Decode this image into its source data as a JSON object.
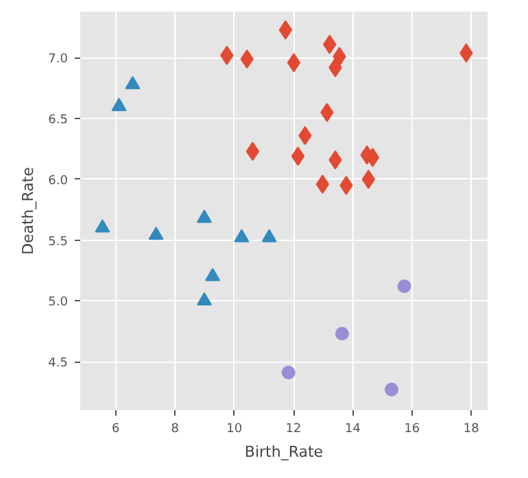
{
  "chart_data": {
    "type": "scatter",
    "xlabel": "Birth_Rate",
    "ylabel": "Death_Rate",
    "xlim": [
      4.8,
      18.55
    ],
    "ylim": [
      4.1,
      7.38
    ],
    "xticks": [
      6,
      8,
      10,
      12,
      14,
      16,
      18
    ],
    "yticks": [
      4.5,
      {
        "value": 5,
        "label": "5.0"
      },
      5.5,
      {
        "value": 6,
        "label": "6.0"
      },
      6.5,
      {
        "value": 7,
        "label": "7.0"
      }
    ],
    "grid": true,
    "series": [
      {
        "color": "#e24a33",
        "marker": "diamond",
        "x": [
          9.75,
          10.43,
          11.73,
          12.01,
          13.22,
          13.55,
          13.41,
          17.83,
          13.13,
          12.39,
          10.62,
          12.15,
          13.41,
          14.48,
          14.67,
          12.98,
          13.78,
          14.53
        ],
        "values": [
          7.02,
          6.99,
          7.23,
          6.96,
          7.11,
          7.01,
          6.92,
          7.04,
          6.55,
          6.36,
          6.23,
          6.19,
          6.16,
          6.2,
          6.18,
          5.96,
          5.95,
          6.0
        ]
      },
      {
        "color": "#348abd",
        "marker": "triangle",
        "x": [
          5.55,
          7.36,
          8.99,
          10.25,
          11.18,
          9.27,
          8.99,
          6.11,
          6.57
        ],
        "values": [
          5.6,
          5.54,
          5.68,
          5.52,
          5.52,
          5.2,
          5.0,
          6.6,
          6.78
        ]
      },
      {
        "color": "#988ed5",
        "marker": "circle",
        "x": [
          15.74,
          13.64,
          11.83,
          15.31
        ],
        "values": [
          5.12,
          4.73,
          4.41,
          4.27
        ]
      }
    ]
  }
}
